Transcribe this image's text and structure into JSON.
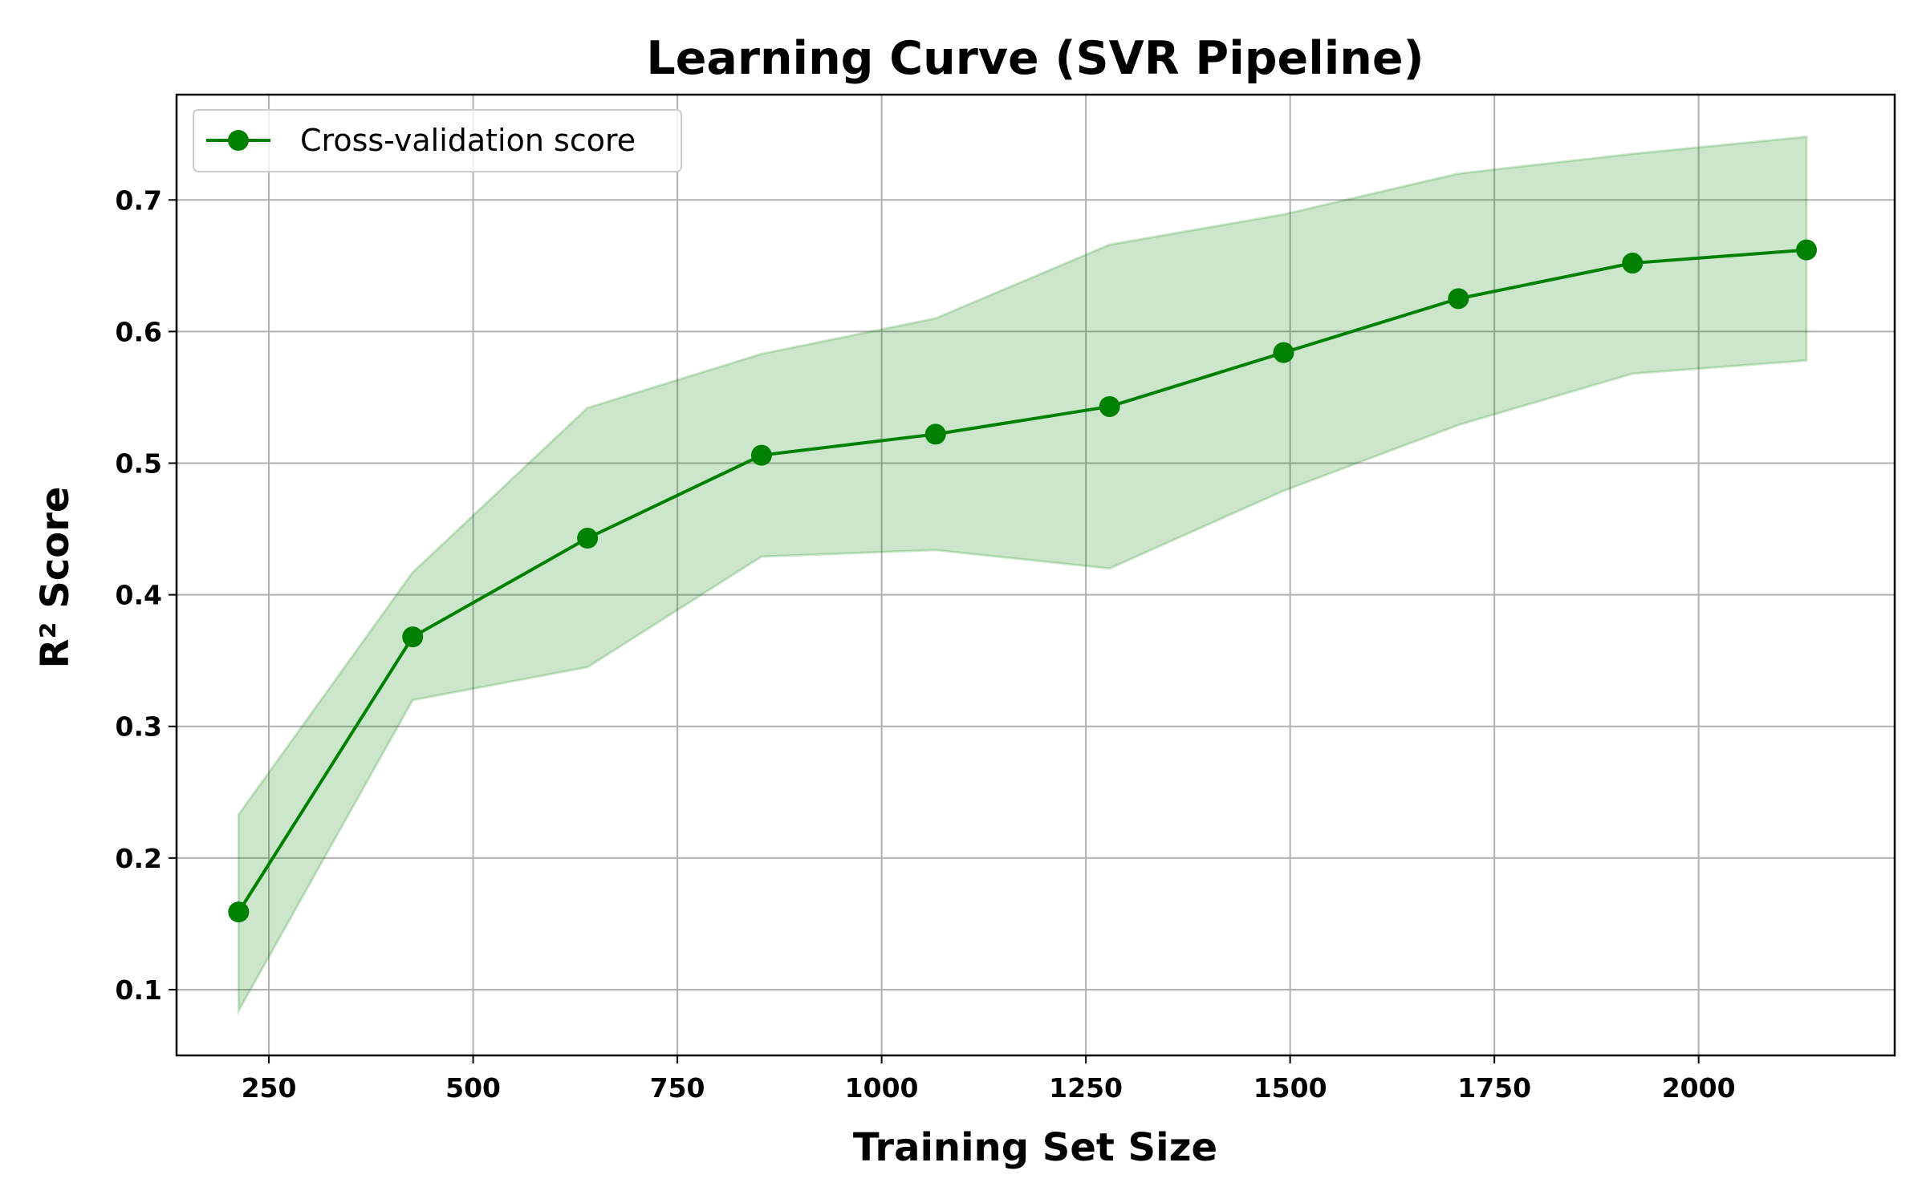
{
  "chart_data": {
    "type": "line",
    "title": "Learning Curve (SVR Pipeline)",
    "xlabel": "Training Set Size",
    "ylabel": "R² Score",
    "xlim": [
      137,
      2240
    ],
    "ylim": [
      0.05,
      0.78
    ],
    "xticks": [
      250,
      500,
      750,
      1000,
      1250,
      1500,
      1750,
      2000
    ],
    "xtick_labels": [
      "250",
      "500",
      "750",
      "1000",
      "1250",
      "1500",
      "1750",
      "2000"
    ],
    "yticks": [
      0.1,
      0.2,
      0.3,
      0.4,
      0.5,
      0.6,
      0.7
    ],
    "ytick_labels": [
      "0.1",
      "0.2",
      "0.3",
      "0.4",
      "0.5",
      "0.6",
      "0.7"
    ],
    "grid": true,
    "legend_position": "top-left",
    "series": [
      {
        "name": "Cross-validation score",
        "color": "#008000",
        "band_color": "#008000",
        "marker": "circle",
        "x": [
          213,
          426,
          640,
          853,
          1066,
          1279,
          1492,
          1706,
          1919,
          2132
        ],
        "y": [
          0.159,
          0.368,
          0.443,
          0.506,
          0.522,
          0.543,
          0.584,
          0.625,
          0.652,
          0.662
        ],
        "y_upper": [
          0.233,
          0.417,
          0.542,
          0.583,
          0.61,
          0.666,
          0.689,
          0.72,
          0.735,
          0.748
        ],
        "y_lower": [
          0.084,
          0.32,
          0.345,
          0.429,
          0.434,
          0.42,
          0.479,
          0.529,
          0.568,
          0.578
        ]
      }
    ]
  }
}
